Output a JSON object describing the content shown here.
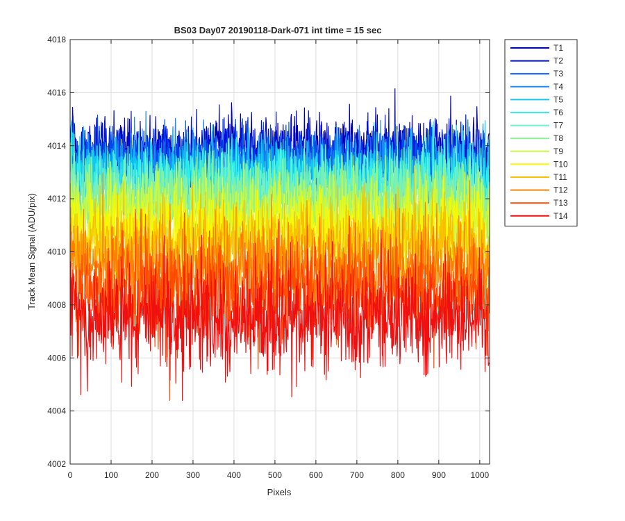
{
  "chart_data": {
    "type": "line",
    "title": "BS03 Day07 20190118-Dark-071 int time = 15 sec",
    "xlabel": "Pixels",
    "ylabel": "Track Mean Signal (ADU/pix)",
    "xlim": [
      0,
      1024
    ],
    "ylim": [
      4002,
      4018
    ],
    "xticks": [
      0,
      100,
      200,
      300,
      400,
      500,
      600,
      700,
      800,
      900,
      1000
    ],
    "yticks": [
      4002,
      4004,
      4006,
      4008,
      4010,
      4012,
      4014,
      4016,
      4018
    ],
    "grid": true,
    "legend_position": "outside-top-right",
    "n_points": 1024,
    "series": [
      {
        "name": "T1",
        "color": "#0000b5",
        "mean": 4013.8,
        "noise_sd": 0.65
      },
      {
        "name": "T2",
        "color": "#0010d9",
        "mean": 4013.6,
        "noise_sd": 0.65
      },
      {
        "name": "T3",
        "color": "#0050f0",
        "mean": 4013.4,
        "noise_sd": 0.65
      },
      {
        "name": "T4",
        "color": "#1a8cf5",
        "mean": 4013.1,
        "noise_sd": 0.65
      },
      {
        "name": "T5",
        "color": "#10c8f0",
        "mean": 4012.9,
        "noise_sd": 0.7
      },
      {
        "name": "T6",
        "color": "#30f0e8",
        "mean": 4012.6,
        "noise_sd": 0.7
      },
      {
        "name": "T7",
        "color": "#70f0c8",
        "mean": 4012.3,
        "noise_sd": 0.75
      },
      {
        "name": "T8",
        "color": "#90f090",
        "mean": 4011.9,
        "noise_sd": 0.75
      },
      {
        "name": "T9",
        "color": "#c8f840",
        "mean": 4011.4,
        "noise_sd": 0.8
      },
      {
        "name": "T10",
        "color": "#f8f800",
        "mean": 4010.9,
        "noise_sd": 0.8
      },
      {
        "name": "T11",
        "color": "#f8c000",
        "mean": 4010.3,
        "noise_sd": 0.85
      },
      {
        "name": "T12",
        "color": "#ff8000",
        "mean": 4009.4,
        "noise_sd": 0.9
      },
      {
        "name": "T13",
        "color": "#ff4a00",
        "mean": 4008.5,
        "noise_sd": 0.95
      },
      {
        "name": "T14",
        "color": "#f01010",
        "mean": 4007.5,
        "noise_sd": 1.0
      }
    ]
  }
}
